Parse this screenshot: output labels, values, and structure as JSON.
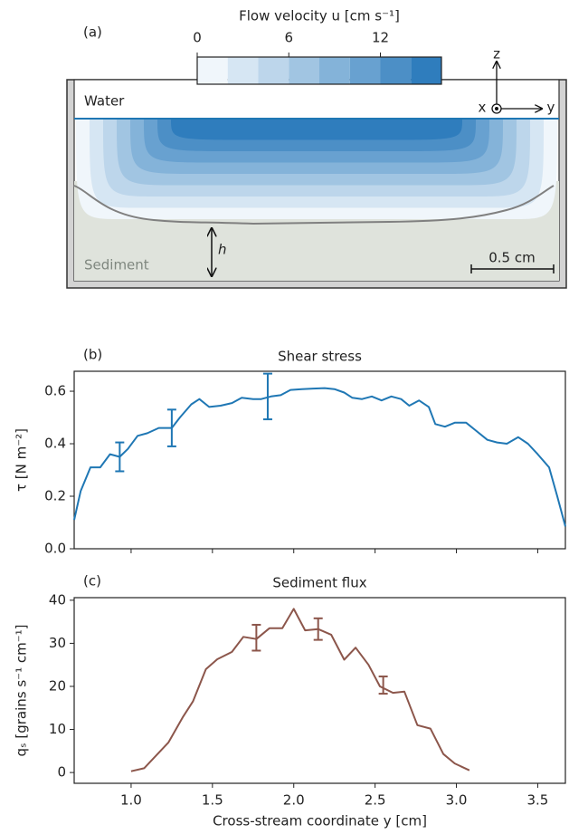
{
  "chart_data": [
    {
      "type": "colorbar",
      "panel_label": "(a)",
      "title": "Flow velocity u [cm s⁻¹]",
      "levels": [
        0,
        2,
        4,
        6,
        8,
        10,
        12,
        14,
        16
      ],
      "colors": [
        "#f0f6fb",
        "#d6e6f3",
        "#bdd6eb",
        "#a1c5e2",
        "#84b3d9",
        "#68a1d0",
        "#4c8fc6",
        "#2f7dbd"
      ],
      "xlim": [
        0,
        16
      ],
      "xticks": [
        0,
        6,
        12
      ],
      "water_color": "#1f77b4",
      "bed_color": "#808080",
      "sediment_color": "#dfe3dc",
      "annotations": {
        "water": "Water",
        "sediment": "Sediment",
        "depth": "h",
        "scale": "0.5 cm",
        "axis_x": "x",
        "axis_y": "y",
        "axis_z": "z"
      }
    },
    {
      "type": "line",
      "panel_label": "(b)",
      "title": "Shear stress",
      "y_label": "τ  [N m⁻²]",
      "xlim": [
        0.65,
        3.67
      ],
      "xticks": [
        1,
        1.5,
        2,
        2.5,
        3,
        3.5
      ],
      "show_xtick_labels": false,
      "ylim": [
        0,
        0.676
      ],
      "yticks": [
        {
          "value": 0,
          "label": "0.0"
        },
        0.2,
        0.4,
        0.6
      ],
      "series": [
        {
          "color": "#1f77b4",
          "x": [
            0.65,
            0.69,
            0.75,
            0.81,
            0.87,
            0.93,
            0.98,
            1.04,
            1.1,
            1.17,
            1.25,
            1.3,
            1.37,
            1.42,
            1.48,
            1.55,
            1.62,
            1.68,
            1.75,
            1.8,
            1.86,
            1.92,
            1.98,
            2.05,
            2.12,
            2.19,
            2.25,
            2.31,
            2.36,
            2.42,
            2.48,
            2.54,
            2.6,
            2.66,
            2.71,
            2.77,
            2.83,
            2.87,
            2.93,
            2.99,
            3.06,
            3.12,
            3.19,
            3.25,
            3.31,
            3.38,
            3.44,
            3.5,
            3.57,
            3.62,
            3.67
          ],
          "values": [
            0.11,
            0.22,
            0.31,
            0.31,
            0.36,
            0.35,
            0.38,
            0.43,
            0.44,
            0.46,
            0.46,
            0.5,
            0.55,
            0.57,
            0.54,
            0.545,
            0.555,
            0.575,
            0.57,
            0.57,
            0.58,
            0.585,
            0.605,
            0.608,
            0.61,
            0.612,
            0.608,
            0.595,
            0.575,
            0.57,
            0.58,
            0.565,
            0.58,
            0.57,
            0.545,
            0.565,
            0.54,
            0.475,
            0.465,
            0.48,
            0.48,
            0.45,
            0.415,
            0.405,
            0.4,
            0.425,
            0.4,
            0.36,
            0.31,
            0.2,
            0.085
          ]
        }
      ],
      "error_bars": {
        "x": [
          0.93,
          1.25,
          1.84
        ],
        "values": [
          0.35,
          0.46,
          0.58
        ],
        "errors": [
          0.055,
          0.07,
          0.087
        ]
      }
    },
    {
      "type": "line",
      "panel_label": "(c)",
      "title": "Sediment flux",
      "y_label": "qₛ  [grains s⁻¹ cm⁻¹]",
      "x_label": "Cross-stream coordinate y  [cm]",
      "xlim": [
        0.65,
        3.67
      ],
      "xticks": [
        {
          "value": 1,
          "label": "1.0"
        },
        1.5,
        {
          "value": 2,
          "label": "2.0"
        },
        2.5,
        {
          "value": 3,
          "label": "3.0"
        },
        3.5
      ],
      "show_xtick_labels": true,
      "ylim": [
        -2.5,
        40.6
      ],
      "yticks": [
        0,
        10,
        20,
        30,
        40
      ],
      "series": [
        {
          "color": "#8c564b",
          "x": [
            1.0,
            1.08,
            1.23,
            1.32,
            1.38,
            1.46,
            1.53,
            1.62,
            1.69,
            1.77,
            1.85,
            1.93,
            2.0,
            2.07,
            2.15,
            2.23,
            2.31,
            2.38,
            2.46,
            2.53,
            2.61,
            2.68,
            2.76,
            2.84,
            2.92,
            2.99,
            3.08
          ],
          "values": [
            0.3,
            1.0,
            7.0,
            13,
            16.5,
            24,
            26.3,
            28,
            31.5,
            31,
            33.5,
            33.5,
            38,
            33,
            33.3,
            32,
            26.2,
            29,
            25,
            20,
            18.5,
            18.8,
            11,
            10.2,
            4.3,
            2.1,
            0.5
          ]
        }
      ],
      "error_bars": {
        "x": [
          1.77,
          2.15,
          2.55
        ],
        "values": [
          31.3,
          33.3,
          20.3
        ],
        "errors": [
          3,
          2.5,
          2
        ]
      }
    }
  ]
}
